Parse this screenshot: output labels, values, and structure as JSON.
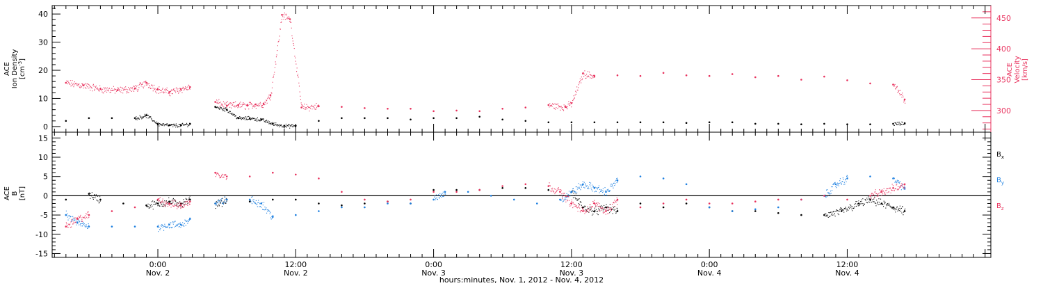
{
  "colors": {
    "black": "#000000",
    "pink": "#e8305c",
    "blue": "#1a7ee0"
  },
  "chart_data": [
    {
      "type": "scatter",
      "panel": "plasma",
      "left_label": [
        "ACE",
        "Ion Density",
        "[cm^-3]"
      ],
      "right_label": [
        "ACE",
        "Velocity",
        "[km/s]"
      ],
      "y_left_ticks": [
        "0",
        "10",
        "20",
        "30",
        "40"
      ],
      "y_left_lim": [
        -2,
        43
      ],
      "y_right_ticks": [
        "300",
        "350",
        "400",
        "450"
      ],
      "y_right_lim": [
        265,
        470
      ],
      "series": [
        {
          "color": "pink",
          "axis": "right",
          "points": [
            [
              -8.0,
              345
            ],
            [
              -6.5,
              341
            ],
            [
              -5.0,
              335
            ],
            [
              -3.5,
              333
            ],
            [
              -2.0,
              336
            ],
            [
              -1.0,
              345
            ],
            [
              0.0,
              334
            ],
            [
              1.0,
              330
            ],
            [
              2.0,
              335
            ],
            [
              2.8,
              338
            ],
            [
              5.0,
              314
            ],
            [
              6.0,
              308
            ],
            [
              7.0,
              309
            ],
            [
              7.8,
              308
            ],
            [
              8.5,
              310
            ],
            [
              9.2,
              311
            ],
            [
              9.8,
              325
            ],
            [
              10.8,
              455
            ],
            [
              11.5,
              448
            ],
            [
              12.5,
              305
            ],
            [
              14.0,
              307
            ],
            [
              16.0,
              306
            ],
            [
              18.0,
              304
            ],
            [
              20.0,
              303
            ],
            [
              22.0,
              303
            ],
            [
              24.0,
              299
            ],
            [
              26.0,
              300
            ],
            [
              28.0,
              299
            ],
            [
              30.0,
              303
            ],
            [
              32.0,
              305
            ],
            [
              34.0,
              309
            ],
            [
              35.5,
              306
            ],
            [
              36.0,
              312
            ],
            [
              37.0,
              360
            ],
            [
              38.0,
              356
            ],
            [
              40.0,
              357
            ],
            [
              42.0,
              356
            ],
            [
              44.0,
              361
            ],
            [
              46.0,
              357
            ],
            [
              48.0,
              356
            ],
            [
              50.0,
              359
            ],
            [
              52.0,
              354
            ],
            [
              54.0,
              356
            ],
            [
              56.0,
              350
            ],
            [
              58.0,
              355
            ],
            [
              60.0,
              349
            ],
            [
              62.0,
              344
            ],
            [
              64.0,
              342
            ],
            [
              65.0,
              318
            ]
          ]
        },
        {
          "color": "black",
          "axis": "left",
          "points": [
            [
              -8.0,
              2
            ],
            [
              -6.0,
              3
            ],
            [
              -4.0,
              3
            ],
            [
              -2.0,
              3
            ],
            [
              -1.0,
              4
            ],
            [
              0.0,
              1
            ],
            [
              1.0,
              0.5
            ],
            [
              2.0,
              0.5
            ],
            [
              2.8,
              1
            ],
            [
              5.0,
              7
            ],
            [
              6.0,
              6
            ],
            [
              7.0,
              3
            ],
            [
              8.0,
              3
            ],
            [
              9.0,
              2.5
            ],
            [
              10.0,
              1
            ],
            [
              11.0,
              0.3
            ],
            [
              12.0,
              0.3
            ],
            [
              14.0,
              2
            ],
            [
              16.0,
              3
            ],
            [
              18.0,
              3
            ],
            [
              20.0,
              3
            ],
            [
              22.0,
              2.5
            ],
            [
              24.0,
              3
            ],
            [
              26.0,
              3
            ],
            [
              28.0,
              3.5
            ],
            [
              30.0,
              2.5
            ],
            [
              32.0,
              2
            ],
            [
              34.0,
              1.5
            ],
            [
              36.0,
              1.5
            ],
            [
              38.0,
              1.5
            ],
            [
              40.0,
              1.5
            ],
            [
              42.0,
              1.5
            ],
            [
              44.0,
              1.5
            ],
            [
              46.0,
              1.3
            ],
            [
              48.0,
              1.5
            ],
            [
              50.0,
              1.5
            ],
            [
              52.0,
              1
            ],
            [
              54.0,
              1
            ],
            [
              56.0,
              0.8
            ],
            [
              58.0,
              1
            ],
            [
              60.0,
              0.8
            ],
            [
              62.0,
              0.8
            ],
            [
              64.0,
              1
            ],
            [
              65.0,
              1.2
            ]
          ]
        }
      ]
    },
    {
      "type": "scatter",
      "panel": "magnetic",
      "left_label": [
        "ACE",
        "B",
        "[nT]"
      ],
      "y_ticks": [
        "-15",
        "-10",
        "-5",
        "0",
        "5",
        "10",
        "15"
      ],
      "y_lim": [
        -16,
        16.5
      ],
      "legend": [
        "B",
        "B",
        "B"
      ],
      "legend_subs": [
        "x",
        "y",
        "z"
      ],
      "x_ticks": [
        {
          "hour": 0,
          "time": "0:00",
          "date": "Nov. 2"
        },
        {
          "hour": 12,
          "time": "12:00",
          "date": "Nov. 2"
        },
        {
          "hour": 24,
          "time": "0:00",
          "date": "Nov. 3"
        },
        {
          "hour": 36,
          "time": "12:00",
          "date": "Nov. 3"
        },
        {
          "hour": 48,
          "time": "0:00",
          "date": "Nov. 4"
        },
        {
          "hour": 60,
          "time": "12:00",
          "date": "Nov. 4"
        }
      ],
      "x_lim": [
        -9.2,
        72.5
      ],
      "xlabel": "hours:minutes, Nov.  1, 2012 - Nov.  4, 2012",
      "series": [
        {
          "color": "black",
          "points": [
            [
              -8.0,
              -1
            ],
            [
              -6.0,
              0.5
            ],
            [
              -5.0,
              -1
            ],
            [
              -3.0,
              -2
            ],
            [
              -1.0,
              -2.5
            ],
            [
              0.0,
              -2
            ],
            [
              1.0,
              -1.5
            ],
            [
              2.0,
              -2
            ],
            [
              2.8,
              -1
            ],
            [
              5.0,
              -2
            ],
            [
              6.0,
              -1
            ],
            [
              8.0,
              -1.5
            ],
            [
              10.0,
              -1
            ],
            [
              12.0,
              -1
            ],
            [
              14.0,
              -2
            ],
            [
              16.0,
              -2.5
            ],
            [
              18.0,
              -2
            ],
            [
              20.0,
              -1.5
            ],
            [
              22.0,
              -2
            ],
            [
              24.0,
              1.5
            ],
            [
              26.0,
              1.5
            ],
            [
              28.0,
              1.5
            ],
            [
              30.0,
              2
            ],
            [
              32.0,
              2
            ],
            [
              34.0,
              1.5
            ],
            [
              36.0,
              1
            ],
            [
              37.0,
              -3
            ],
            [
              38.0,
              -4
            ],
            [
              39.0,
              -3
            ],
            [
              40.0,
              -4
            ],
            [
              42.0,
              -2
            ],
            [
              44.0,
              -3
            ],
            [
              46.0,
              -2
            ],
            [
              48.0,
              -3
            ],
            [
              50.0,
              -4
            ],
            [
              52.0,
              -4
            ],
            [
              54.0,
              -4.5
            ],
            [
              56.0,
              -5
            ],
            [
              58.0,
              -5
            ],
            [
              59.5,
              -4
            ],
            [
              61.0,
              -2
            ],
            [
              62.0,
              -1
            ],
            [
              63.0,
              -2
            ],
            [
              64.0,
              -3
            ],
            [
              65.0,
              -4
            ]
          ]
        },
        {
          "color": "blue",
          "points": [
            [
              -8.0,
              -5
            ],
            [
              -7.0,
              -7
            ],
            [
              -6.0,
              -8
            ],
            [
              -4.0,
              -8
            ],
            [
              -2.0,
              -8
            ],
            [
              0.0,
              -8
            ],
            [
              1.0,
              -7.5
            ],
            [
              2.0,
              -7.5
            ],
            [
              2.8,
              -6
            ],
            [
              5.0,
              -2
            ],
            [
              6.0,
              -1
            ],
            [
              8.0,
              -1
            ],
            [
              9.0,
              -2
            ],
            [
              10.0,
              -5.5
            ],
            [
              12.0,
              -5
            ],
            [
              14.0,
              -4
            ],
            [
              16.0,
              -3
            ],
            [
              18.0,
              -3
            ],
            [
              20.0,
              -2
            ],
            [
              22.0,
              -2
            ],
            [
              24.0,
              -1
            ],
            [
              25.0,
              1
            ],
            [
              27.0,
              1
            ],
            [
              29.0,
              0
            ],
            [
              31.0,
              -1
            ],
            [
              33.0,
              -2
            ],
            [
              35.0,
              -1
            ],
            [
              36.0,
              1
            ],
            [
              37.0,
              3
            ],
            [
              38.0,
              2
            ],
            [
              39.0,
              1
            ],
            [
              40.0,
              4
            ],
            [
              42.0,
              5
            ],
            [
              44.0,
              4.5
            ],
            [
              46.0,
              3
            ],
            [
              48.0,
              -3
            ],
            [
              50.0,
              -4
            ],
            [
              52.0,
              -3.5
            ],
            [
              54.0,
              -3
            ],
            [
              56.0,
              -1
            ],
            [
              58.0,
              0
            ],
            [
              59.0,
              3
            ],
            [
              60.0,
              4.5
            ],
            [
              62.0,
              5
            ],
            [
              64.0,
              4.5
            ],
            [
              65.0,
              2
            ]
          ]
        },
        {
          "color": "pink",
          "points": [
            [
              -8.0,
              -8
            ],
            [
              -7.0,
              -6
            ],
            [
              -6.0,
              -5
            ],
            [
              -4.0,
              -4
            ],
            [
              -2.0,
              -3
            ],
            [
              0.0,
              -1
            ],
            [
              1.0,
              -2
            ],
            [
              2.0,
              -2.5
            ],
            [
              2.8,
              -1.5
            ],
            [
              5.0,
              6
            ],
            [
              6.0,
              5
            ],
            [
              8.0,
              5
            ],
            [
              10.0,
              6
            ],
            [
              12.0,
              5.5
            ],
            [
              14.0,
              4.5
            ],
            [
              16.0,
              1
            ],
            [
              18.0,
              -1
            ],
            [
              20.0,
              -1.5
            ],
            [
              22.0,
              -1
            ],
            [
              24.0,
              1
            ],
            [
              26.0,
              1
            ],
            [
              28.0,
              1.5
            ],
            [
              30.0,
              2.5
            ],
            [
              32.0,
              3
            ],
            [
              34.0,
              2.5
            ],
            [
              35.0,
              1
            ],
            [
              36.0,
              -2
            ],
            [
              37.0,
              -4
            ],
            [
              38.0,
              -2
            ],
            [
              39.0,
              -4
            ],
            [
              40.0,
              -1
            ],
            [
              42.0,
              -3
            ],
            [
              44.0,
              -2
            ],
            [
              46.0,
              -1
            ],
            [
              48.0,
              -2
            ],
            [
              50.0,
              -2
            ],
            [
              52.0,
              -1.5
            ],
            [
              54.0,
              -1
            ],
            [
              56.0,
              -1
            ],
            [
              58.0,
              0
            ],
            [
              60.0,
              -1
            ],
            [
              62.0,
              0
            ],
            [
              63.0,
              1
            ],
            [
              64.0,
              2
            ],
            [
              65.0,
              3
            ]
          ]
        }
      ]
    }
  ]
}
